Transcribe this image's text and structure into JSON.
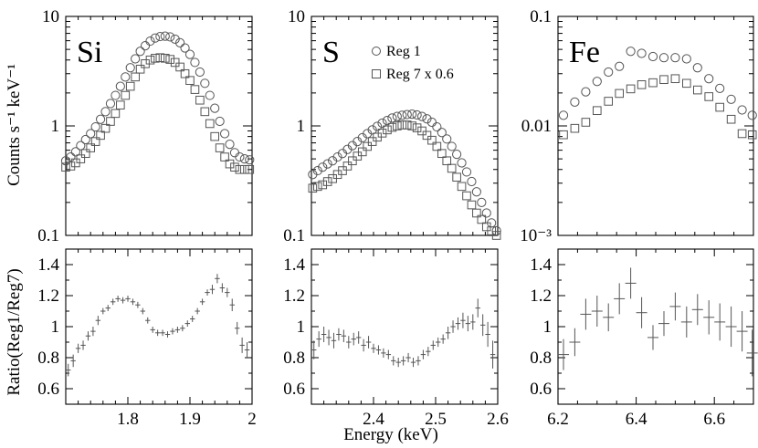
{
  "figure": {
    "ylabel_top": "Counts s⁻¹ keV⁻¹",
    "ylabel_bottom": "Ratio(Reg1/Reg7)",
    "xlabel": "Energy (keV)",
    "legend": [
      {
        "marker": "circle",
        "label": "Reg 1"
      },
      {
        "marker": "square",
        "label": "Reg 7 x 0.6"
      }
    ]
  },
  "chart_data": [
    {
      "type": "scatter",
      "panel": "Si",
      "title": "Si",
      "yscale": "log",
      "xlim": [
        1.7,
        2.0
      ],
      "ylim": [
        0.1,
        10
      ],
      "yticks": [
        {
          "v": 0.1,
          "t": "0.1"
        },
        {
          "v": 1,
          "t": "1"
        },
        {
          "v": 10,
          "t": "10"
        }
      ],
      "series": [
        {
          "name": "Reg 1",
          "marker": "circle",
          "x": [
            1.7,
            1.708,
            1.716,
            1.724,
            1.732,
            1.74,
            1.748,
            1.756,
            1.764,
            1.772,
            1.78,
            1.788,
            1.796,
            1.804,
            1.812,
            1.82,
            1.828,
            1.836,
            1.844,
            1.852,
            1.86,
            1.868,
            1.876,
            1.884,
            1.892,
            1.9,
            1.908,
            1.916,
            1.924,
            1.932,
            1.94,
            1.948,
            1.956,
            1.964,
            1.972,
            1.98,
            1.988,
            1.996
          ],
          "y": [
            0.48,
            0.52,
            0.58,
            0.66,
            0.75,
            0.85,
            0.98,
            1.15,
            1.35,
            1.6,
            1.9,
            2.3,
            2.8,
            3.4,
            4.1,
            4.8,
            5.4,
            5.95,
            6.35,
            6.55,
            6.6,
            6.5,
            6.2,
            5.75,
            5.15,
            4.5,
            3.8,
            3.1,
            2.45,
            1.9,
            1.45,
            1.1,
            0.85,
            0.68,
            0.57,
            0.52,
            0.5,
            0.49
          ]
        },
        {
          "name": "Reg 7 x 0.6",
          "marker": "square",
          "x": [
            1.7,
            1.708,
            1.716,
            1.724,
            1.732,
            1.74,
            1.748,
            1.756,
            1.764,
            1.772,
            1.78,
            1.788,
            1.796,
            1.804,
            1.812,
            1.82,
            1.828,
            1.836,
            1.844,
            1.852,
            1.86,
            1.868,
            1.876,
            1.884,
            1.892,
            1.9,
            1.908,
            1.916,
            1.924,
            1.932,
            1.94,
            1.948,
            1.956,
            1.964,
            1.972,
            1.98,
            1.988,
            1.996
          ],
          "y": [
            0.42,
            0.43,
            0.46,
            0.5,
            0.56,
            0.63,
            0.72,
            0.82,
            0.95,
            1.1,
            1.3,
            1.55,
            1.9,
            2.3,
            2.8,
            3.3,
            3.7,
            4.0,
            4.15,
            4.2,
            4.15,
            4.05,
            3.8,
            3.45,
            3.0,
            2.6,
            2.15,
            1.72,
            1.35,
            1.05,
            0.8,
            0.63,
            0.52,
            0.45,
            0.42,
            0.4,
            0.4,
            0.4
          ]
        }
      ]
    },
    {
      "type": "scatter",
      "panel": "S",
      "title": "S",
      "yscale": "log",
      "xlim": [
        2.3,
        2.6
      ],
      "ylim": [
        0.1,
        10
      ],
      "yticks": [
        {
          "v": 0.1,
          "t": "0.1"
        },
        {
          "v": 1,
          "t": "1"
        },
        {
          "v": 10,
          "t": "10"
        }
      ],
      "series": [
        {
          "name": "Reg 1",
          "marker": "circle",
          "x": [
            2.302,
            2.31,
            2.318,
            2.326,
            2.334,
            2.342,
            2.35,
            2.358,
            2.366,
            2.374,
            2.382,
            2.39,
            2.398,
            2.406,
            2.414,
            2.422,
            2.43,
            2.438,
            2.446,
            2.454,
            2.462,
            2.47,
            2.478,
            2.486,
            2.494,
            2.502,
            2.51,
            2.518,
            2.526,
            2.534,
            2.542,
            2.55,
            2.558,
            2.566,
            2.574,
            2.582,
            2.59,
            2.598
          ],
          "y": [
            0.36,
            0.39,
            0.42,
            0.45,
            0.48,
            0.52,
            0.56,
            0.61,
            0.66,
            0.72,
            0.78,
            0.85,
            0.92,
            0.99,
            1.06,
            1.12,
            1.18,
            1.22,
            1.25,
            1.27,
            1.28,
            1.26,
            1.22,
            1.16,
            1.08,
            0.98,
            0.87,
            0.76,
            0.65,
            0.55,
            0.46,
            0.38,
            0.31,
            0.25,
            0.2,
            0.16,
            0.13,
            0.11
          ]
        },
        {
          "name": "Reg 7 x 0.6",
          "marker": "square",
          "x": [
            2.302,
            2.31,
            2.318,
            2.326,
            2.334,
            2.342,
            2.35,
            2.358,
            2.366,
            2.374,
            2.382,
            2.39,
            2.398,
            2.406,
            2.414,
            2.422,
            2.43,
            2.438,
            2.446,
            2.454,
            2.462,
            2.47,
            2.478,
            2.486,
            2.494,
            2.502,
            2.51,
            2.518,
            2.526,
            2.534,
            2.542,
            2.55,
            2.558,
            2.566,
            2.574,
            2.582,
            2.59,
            2.598
          ],
          "y": [
            0.27,
            0.28,
            0.29,
            0.31,
            0.33,
            0.36,
            0.39,
            0.43,
            0.48,
            0.53,
            0.58,
            0.65,
            0.72,
            0.79,
            0.86,
            0.92,
            0.97,
            1.0,
            1.02,
            1.02,
            1.0,
            0.96,
            0.9,
            0.82,
            0.74,
            0.65,
            0.56,
            0.48,
            0.41,
            0.34,
            0.28,
            0.23,
            0.19,
            0.16,
            0.14,
            0.12,
            0.11,
            0.1
          ]
        }
      ]
    },
    {
      "type": "scatter",
      "panel": "Fe",
      "title": "Fe",
      "yscale": "log",
      "xlim": [
        6.2,
        6.7
      ],
      "ylim": [
        0.001,
        0.1
      ],
      "yticks": [
        {
          "v": 0.001,
          "t": "10⁻³"
        },
        {
          "v": 0.01,
          "t": "0.01"
        },
        {
          "v": 0.1,
          "t": "0.1"
        }
      ],
      "series": [
        {
          "name": "Reg 1",
          "marker": "circle",
          "x": [
            6.214,
            6.243,
            6.271,
            6.3,
            6.329,
            6.357,
            6.386,
            6.414,
            6.443,
            6.471,
            6.5,
            6.529,
            6.557,
            6.586,
            6.614,
            6.643,
            6.671,
            6.697
          ],
          "y": [
            0.0125,
            0.0165,
            0.0205,
            0.0255,
            0.031,
            0.035,
            0.048,
            0.046,
            0.043,
            0.042,
            0.042,
            0.041,
            0.034,
            0.027,
            0.022,
            0.0175,
            0.014,
            0.0125
          ]
        },
        {
          "name": "Reg 7 x 0.6",
          "marker": "square",
          "x": [
            6.214,
            6.243,
            6.271,
            6.3,
            6.329,
            6.357,
            6.386,
            6.414,
            6.443,
            6.471,
            6.5,
            6.529,
            6.557,
            6.586,
            6.614,
            6.643,
            6.671,
            6.697
          ],
          "y": [
            0.0083,
            0.0095,
            0.0108,
            0.0138,
            0.0168,
            0.0198,
            0.0218,
            0.0238,
            0.0248,
            0.0265,
            0.027,
            0.0245,
            0.0213,
            0.0185,
            0.0148,
            0.0115,
            0.0085,
            0.0083
          ]
        }
      ]
    },
    {
      "type": "scatter",
      "panel": "Si-ratio",
      "title": "",
      "yscale": "linear",
      "xlim": [
        1.7,
        2.0
      ],
      "ylim": [
        0.5,
        1.5
      ],
      "xticks": [
        {
          "v": 1.8,
          "t": "1.8"
        },
        {
          "v": 1.9,
          "t": "1.9"
        },
        {
          "v": 2.0,
          "t": "2"
        }
      ],
      "yticks": [
        {
          "v": 0.6,
          "t": "0.6"
        },
        {
          "v": 0.8,
          "t": "0.8"
        },
        {
          "v": 1.0,
          "t": "1"
        },
        {
          "v": 1.2,
          "t": "1.2"
        },
        {
          "v": 1.4,
          "t": "1.4"
        }
      ],
      "series": [
        {
          "name": "Reg1/Reg7",
          "marker": "errorbar",
          "xerr": 0.004,
          "x": [
            1.704,
            1.712,
            1.72,
            1.728,
            1.736,
            1.744,
            1.752,
            1.76,
            1.768,
            1.776,
            1.784,
            1.792,
            1.8,
            1.808,
            1.816,
            1.824,
            1.832,
            1.84,
            1.848,
            1.856,
            1.864,
            1.872,
            1.88,
            1.888,
            1.896,
            1.904,
            1.912,
            1.92,
            1.928,
            1.936,
            1.944,
            1.952,
            1.96,
            1.968,
            1.976,
            1.984,
            1.992
          ],
          "y": [
            0.72,
            0.78,
            0.86,
            0.88,
            0.94,
            0.97,
            1.04,
            1.1,
            1.12,
            1.16,
            1.18,
            1.17,
            1.18,
            1.16,
            1.14,
            1.1,
            1.04,
            0.98,
            0.96,
            0.96,
            0.95,
            0.97,
            0.98,
            0.99,
            1.02,
            1.05,
            1.1,
            1.16,
            1.22,
            1.24,
            1.31,
            1.25,
            1.22,
            1.14,
            0.99,
            0.88,
            0.85
          ],
          "yerr": [
            0.04,
            0.04,
            0.03,
            0.03,
            0.03,
            0.03,
            0.03,
            0.02,
            0.02,
            0.02,
            0.02,
            0.02,
            0.02,
            0.02,
            0.02,
            0.02,
            0.02,
            0.02,
            0.02,
            0.02,
            0.02,
            0.02,
            0.02,
            0.02,
            0.02,
            0.02,
            0.02,
            0.02,
            0.02,
            0.03,
            0.03,
            0.03,
            0.03,
            0.04,
            0.04,
            0.05,
            0.05
          ]
        }
      ]
    },
    {
      "type": "scatter",
      "panel": "S-ratio",
      "title": "",
      "yscale": "linear",
      "xlim": [
        2.3,
        2.6
      ],
      "ylim": [
        0.5,
        1.5
      ],
      "xticks": [
        {
          "v": 2.4,
          "t": "2.4"
        },
        {
          "v": 2.5,
          "t": "2.5"
        },
        {
          "v": 2.6,
          "t": "2.6"
        }
      ],
      "yticks": [
        {
          "v": 0.6,
          "t": "0.6"
        },
        {
          "v": 0.8,
          "t": "0.8"
        },
        {
          "v": 1.0,
          "t": "1"
        },
        {
          "v": 1.2,
          "t": "1.2"
        },
        {
          "v": 1.4,
          "t": "1.4"
        }
      ],
      "series": [
        {
          "name": "Reg1/Reg7",
          "marker": "errorbar",
          "xerr": 0.004,
          "x": [
            2.304,
            2.312,
            2.32,
            2.328,
            2.336,
            2.344,
            2.352,
            2.36,
            2.368,
            2.376,
            2.384,
            2.392,
            2.4,
            2.408,
            2.416,
            2.424,
            2.432,
            2.44,
            2.448,
            2.456,
            2.464,
            2.472,
            2.48,
            2.488,
            2.496,
            2.504,
            2.512,
            2.52,
            2.528,
            2.536,
            2.544,
            2.552,
            2.56,
            2.568,
            2.576,
            2.584,
            2.592
          ],
          "y": [
            0.85,
            0.92,
            0.95,
            0.93,
            0.91,
            0.95,
            0.94,
            0.9,
            0.92,
            0.93,
            0.88,
            0.9,
            0.86,
            0.85,
            0.83,
            0.82,
            0.78,
            0.77,
            0.78,
            0.8,
            0.77,
            0.78,
            0.82,
            0.84,
            0.88,
            0.9,
            0.92,
            0.96,
            1.0,
            1.02,
            1.04,
            1.02,
            1.03,
            1.12,
            1.01,
            0.95,
            0.82
          ],
          "yerr": [
            0.06,
            0.05,
            0.05,
            0.05,
            0.05,
            0.04,
            0.04,
            0.04,
            0.04,
            0.04,
            0.04,
            0.04,
            0.03,
            0.03,
            0.03,
            0.03,
            0.03,
            0.03,
            0.03,
            0.03,
            0.03,
            0.03,
            0.03,
            0.03,
            0.03,
            0.03,
            0.03,
            0.04,
            0.04,
            0.04,
            0.05,
            0.05,
            0.05,
            0.06,
            0.07,
            0.08,
            0.09
          ]
        }
      ]
    },
    {
      "type": "scatter",
      "panel": "Fe-ratio",
      "title": "",
      "yscale": "linear",
      "xlim": [
        6.2,
        6.7
      ],
      "ylim": [
        0.5,
        1.5
      ],
      "xticks": [
        {
          "v": 6.2,
          "t": "6.2"
        },
        {
          "v": 6.4,
          "t": "6.4"
        },
        {
          "v": 6.6,
          "t": "6.6"
        }
      ],
      "yticks": [
        {
          "v": 0.6,
          "t": "0.6"
        },
        {
          "v": 0.8,
          "t": "0.8"
        },
        {
          "v": 1.0,
          "t": "1"
        },
        {
          "v": 1.2,
          "t": "1.2"
        },
        {
          "v": 1.4,
          "t": "1.4"
        }
      ],
      "series": [
        {
          "name": "Reg1/Reg7",
          "marker": "errorbar",
          "xerr": 0.014,
          "x": [
            6.214,
            6.243,
            6.271,
            6.3,
            6.329,
            6.357,
            6.386,
            6.414,
            6.443,
            6.471,
            6.5,
            6.529,
            6.557,
            6.586,
            6.614,
            6.643,
            6.671,
            6.697
          ],
          "y": [
            0.82,
            0.9,
            1.08,
            1.1,
            1.06,
            1.18,
            1.28,
            1.09,
            0.93,
            1.02,
            1.13,
            1.03,
            1.11,
            1.06,
            1.03,
            1.0,
            0.97,
            0.83
          ],
          "yerr": [
            0.1,
            0.09,
            0.1,
            0.1,
            0.09,
            0.1,
            0.1,
            0.1,
            0.08,
            0.08,
            0.09,
            0.1,
            0.1,
            0.11,
            0.12,
            0.13,
            0.13,
            0.15
          ]
        }
      ]
    }
  ]
}
